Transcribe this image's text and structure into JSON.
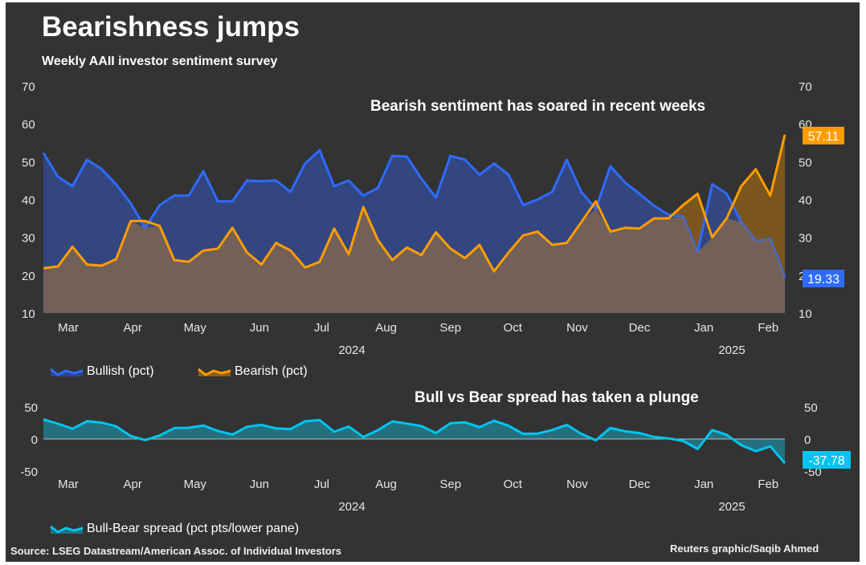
{
  "title": "Bearishness jumps",
  "subtitle": "Weekly AAII investor sentiment survey",
  "source": "Source: LSEG Datastream/American Assoc. of Individual Investors",
  "credit": "Reuters graphic/Saqib Ahmed",
  "colors": {
    "bullish": "#2f6bff",
    "bearish": "#ff9d00",
    "spread": "#00c4ef",
    "background": "#333333"
  },
  "chart_data": [
    {
      "type": "area",
      "annotation": "Bearish sentiment has soared in recent weeks",
      "x_start": "2024-02-29",
      "x_frequency": "weekly",
      "month_labels": [
        "Mar",
        "Apr",
        "May",
        "Jun",
        "Jul",
        "Aug",
        "Sep",
        "Oct",
        "Nov",
        "Dec",
        "Jan",
        "Feb"
      ],
      "year_labels": [
        "2024",
        "2025"
      ],
      "ylim": [
        10,
        70
      ],
      "yticks": [
        10,
        20,
        30,
        40,
        50,
        60,
        70
      ],
      "grid": false,
      "legend": "bottom-left",
      "series": [
        {
          "name": "Bullish (pct)",
          "last_label": "19.33",
          "values": [
            52.3,
            46,
            43.5,
            50.5,
            48,
            44,
            39,
            32.5,
            38.5,
            41,
            41,
            47.5,
            39.5,
            39.5,
            45,
            44.8,
            45,
            42,
            49.5,
            53,
            43.5,
            45,
            41,
            43,
            51.5,
            51.3,
            45.5,
            40.5,
            51.5,
            50.5,
            46.5,
            49.5,
            46.5,
            38.5,
            40,
            42,
            50.5,
            42,
            37.5,
            48.8,
            44.5,
            41.5,
            38.3,
            36,
            35.5,
            26,
            44,
            41.5,
            34,
            29,
            29.5,
            19.33
          ]
        },
        {
          "name": "Bearish (pct)",
          "last_label": "57.11",
          "values": [
            21.8,
            22.3,
            27.5,
            22.8,
            22.5,
            24.2,
            34.3,
            34.3,
            33,
            24,
            23.5,
            26.5,
            27,
            32.5,
            26,
            22.8,
            28.5,
            26.5,
            22,
            23.5,
            32.3,
            25.5,
            38,
            29.3,
            24,
            27.3,
            25.3,
            31.3,
            27,
            24.5,
            28,
            21,
            26,
            30.5,
            31.5,
            28,
            28.5,
            34,
            39.5,
            31.5,
            32.5,
            32.3,
            35,
            35,
            38.5,
            41.5,
            30,
            35,
            43.5,
            48,
            41,
            57.11
          ]
        }
      ]
    },
    {
      "type": "area",
      "annotation": "Bull vs Bear spread has taken a plunge",
      "ylim": [
        -50,
        50
      ],
      "yticks": [
        -50,
        0,
        50
      ],
      "grid": false,
      "legend": "bottom-left",
      "month_labels": [
        "Mar",
        "Apr",
        "May",
        "Jun",
        "Jul",
        "Aug",
        "Sep",
        "Oct",
        "Nov",
        "Dec",
        "Jan",
        "Feb"
      ],
      "year_labels": [
        "2024",
        "2025"
      ],
      "series": [
        {
          "name": "Bull-Bear spread (pct pts/lower pane)",
          "last_label": "-37.78",
          "values": [
            30.5,
            23.7,
            16,
            27.7,
            25.5,
            19.8,
            4.7,
            -1.8,
            5.5,
            17,
            17.5,
            21,
            12.5,
            7,
            19,
            22,
            16.5,
            15.5,
            27.5,
            29.5,
            11.2,
            19.5,
            3,
            13.7,
            27.5,
            24,
            20.2,
            9.2,
            24.5,
            26,
            18.5,
            28.5,
            20.5,
            8,
            8.5,
            14,
            22,
            8,
            -2,
            17.3,
            12,
            9.2,
            3.3,
            1,
            -3,
            -15.5,
            14,
            6.5,
            -9.5,
            -19,
            -11.5,
            -37.78
          ]
        }
      ]
    }
  ]
}
